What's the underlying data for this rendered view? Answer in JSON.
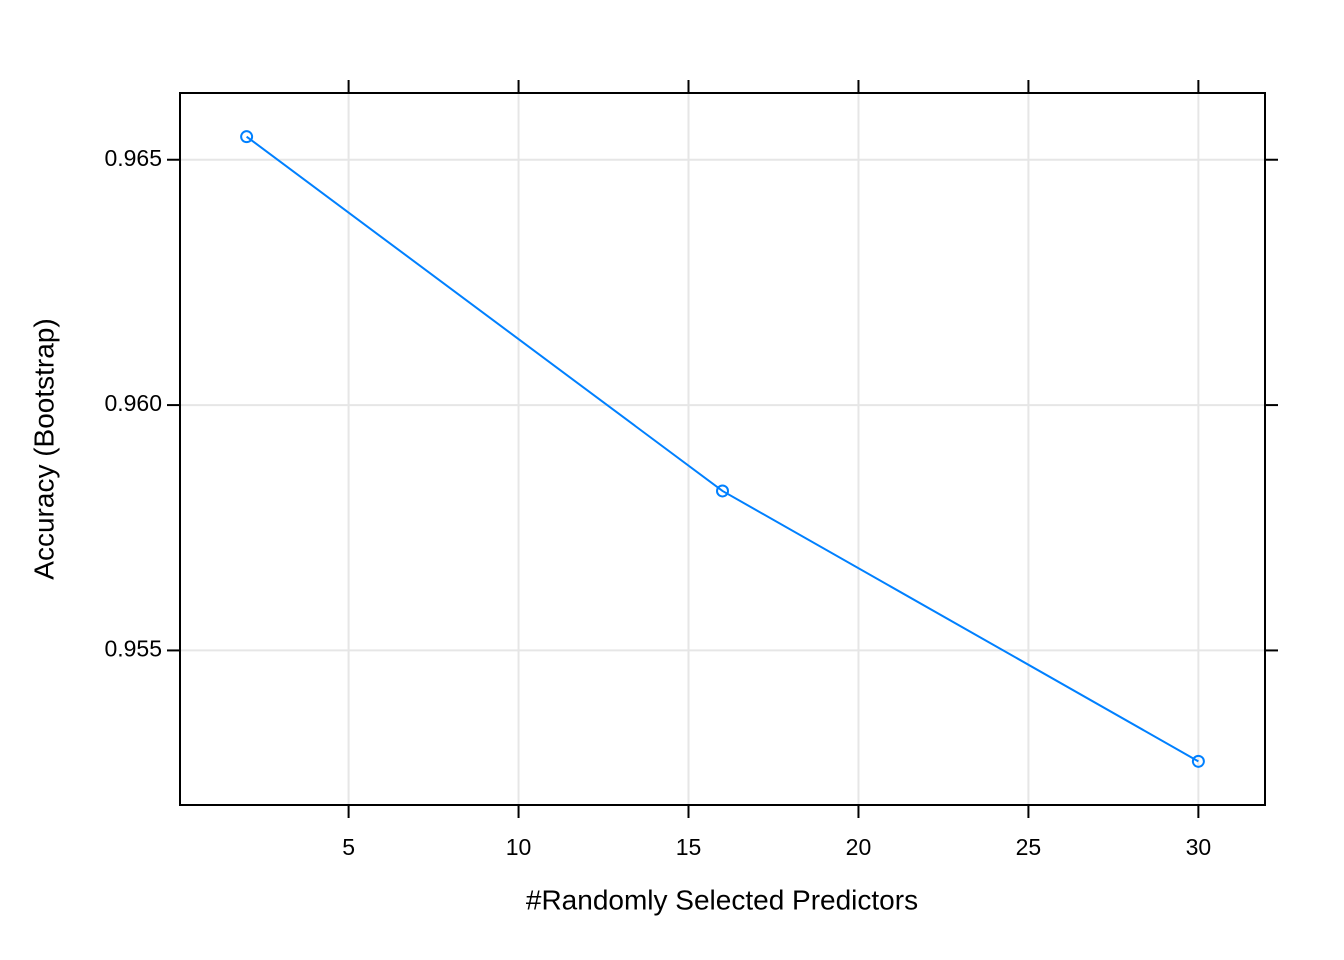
{
  "chart_data": {
    "type": "line",
    "x_label": "#Randomly Selected Predictors",
    "y_label": "Accuracy (Bootstrap)",
    "x": [
      2,
      16,
      30
    ],
    "series": [
      {
        "name": "Accuracy",
        "color": "#0080ff",
        "values": [
          0.96547,
          0.95825,
          0.95274
        ]
      }
    ],
    "xlim": [
      0.04,
      31.96
    ],
    "xticks": [
      5,
      10,
      15,
      20,
      25,
      30
    ],
    "ylim": [
      0.95185,
      0.96636
    ],
    "yticks": [
      0.955,
      {
        "value": 0.96,
        "label": "0.960"
      },
      0.965
    ],
    "grid": true,
    "markers": "open-circle"
  }
}
